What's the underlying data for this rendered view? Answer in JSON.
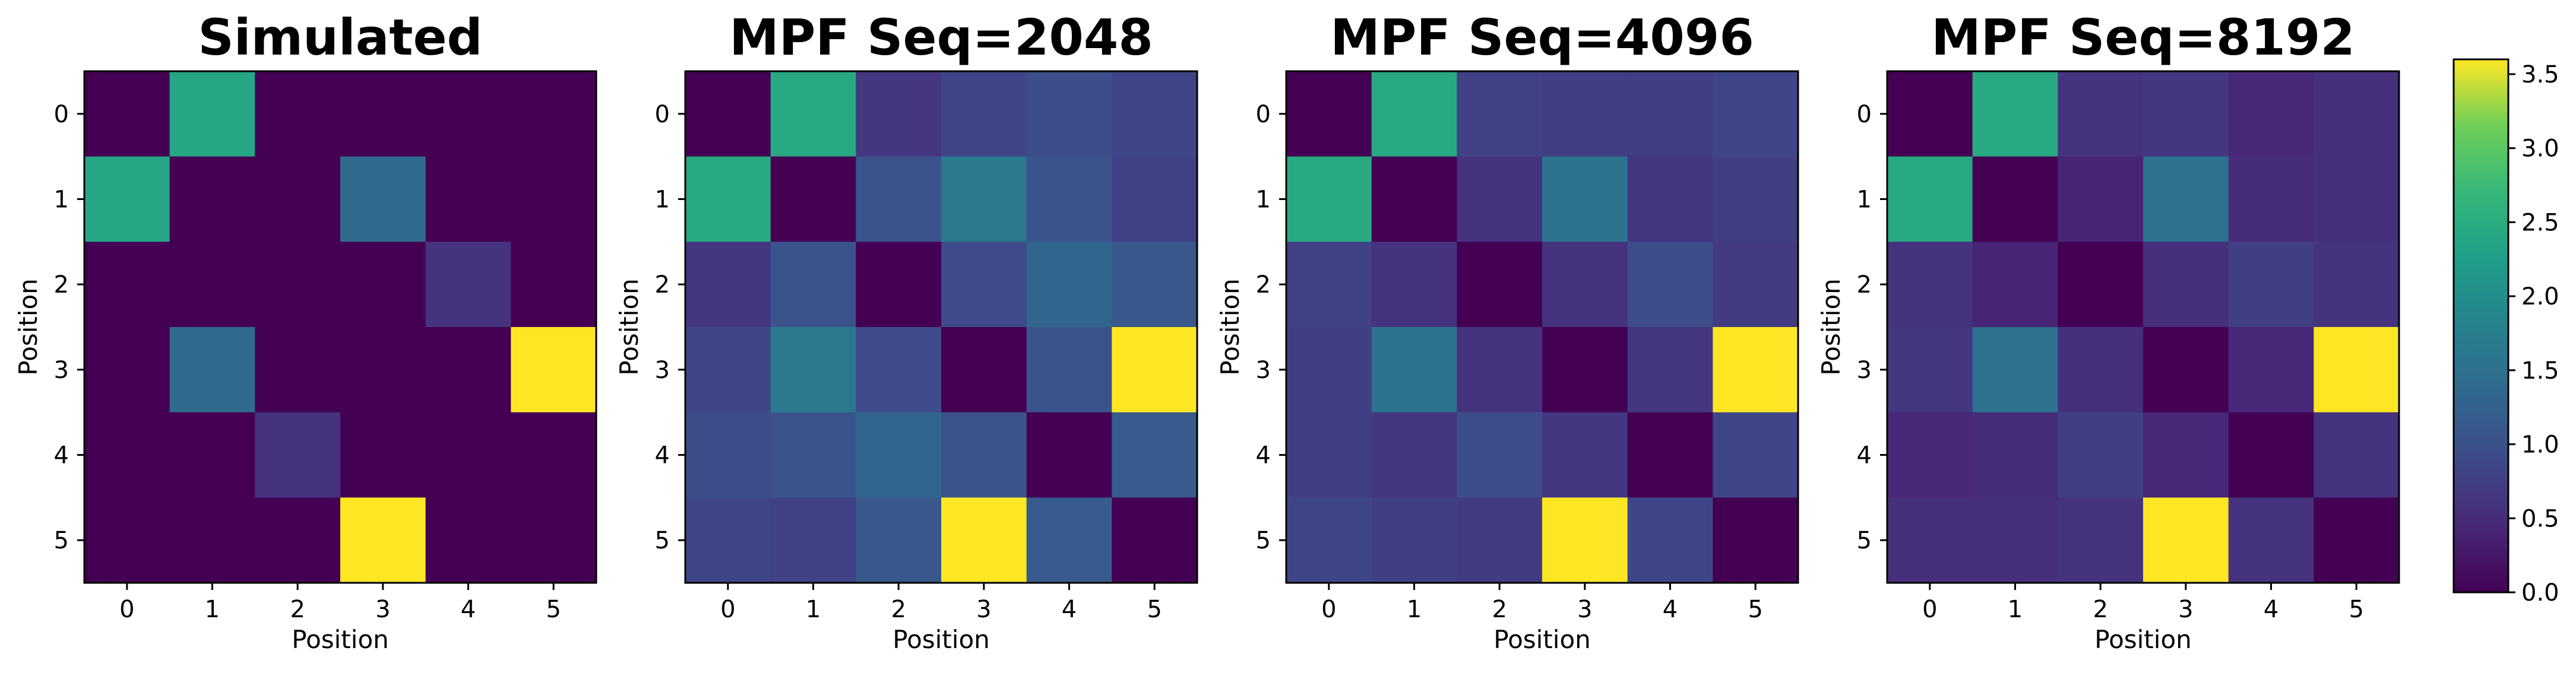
{
  "chart_data": {
    "type": "heatmap",
    "colormap": "viridis",
    "colorbar": {
      "vmin": 0.0,
      "vmax": 3.6,
      "ticks": [
        "0.0",
        "0.5",
        "1.0",
        "1.5",
        "2.0",
        "2.5",
        "3.0",
        "3.5"
      ]
    },
    "panels": [
      {
        "title": "Simulated",
        "xlabel": "Position",
        "ylabel": "Position",
        "xticks": [
          "0",
          "1",
          "2",
          "3",
          "4",
          "5"
        ],
        "yticks": [
          "0",
          "1",
          "2",
          "3",
          "4",
          "5"
        ],
        "matrix": [
          [
            0.0,
            2.4,
            0.0,
            0.0,
            0.0,
            0.0
          ],
          [
            2.4,
            0.0,
            0.0,
            1.4,
            0.0,
            0.0
          ],
          [
            0.0,
            0.0,
            0.0,
            0.0,
            0.6,
            0.0
          ],
          [
            0.0,
            1.4,
            0.0,
            0.0,
            0.0,
            3.6
          ],
          [
            0.0,
            0.0,
            0.6,
            0.0,
            0.0,
            0.0
          ],
          [
            0.0,
            0.0,
            0.0,
            3.6,
            0.0,
            0.0
          ]
        ]
      },
      {
        "title": "MPF Seq=2048",
        "xlabel": "Position",
        "ylabel": "Position",
        "xticks": [
          "0",
          "1",
          "2",
          "3",
          "4",
          "5"
        ],
        "yticks": [
          "0",
          "1",
          "2",
          "3",
          "4",
          "5"
        ],
        "matrix": [
          [
            0.0,
            2.45,
            0.65,
            0.85,
            0.95,
            0.85
          ],
          [
            2.45,
            0.0,
            1.05,
            1.65,
            1.05,
            0.8
          ],
          [
            0.65,
            1.05,
            0.0,
            0.9,
            1.3,
            1.1
          ],
          [
            0.85,
            1.65,
            0.9,
            0.0,
            1.05,
            3.6
          ],
          [
            0.95,
            1.05,
            1.3,
            1.05,
            0.0,
            1.15
          ],
          [
            0.85,
            0.8,
            1.1,
            3.6,
            1.15,
            0.0
          ]
        ]
      },
      {
        "title": "MPF Seq=4096",
        "xlabel": "Position",
        "ylabel": "Position",
        "xticks": [
          "0",
          "1",
          "2",
          "3",
          "4",
          "5"
        ],
        "yticks": [
          "0",
          "1",
          "2",
          "3",
          "4",
          "5"
        ],
        "matrix": [
          [
            0.0,
            2.45,
            0.8,
            0.75,
            0.75,
            0.85
          ],
          [
            2.45,
            0.0,
            0.6,
            1.55,
            0.65,
            0.75
          ],
          [
            0.8,
            0.6,
            0.0,
            0.6,
            0.95,
            0.7
          ],
          [
            0.75,
            1.55,
            0.6,
            0.0,
            0.65,
            3.6
          ],
          [
            0.75,
            0.65,
            0.95,
            0.65,
            0.0,
            0.85
          ],
          [
            0.85,
            0.75,
            0.7,
            3.6,
            0.85,
            0.0
          ]
        ]
      },
      {
        "title": "MPF Seq=8192",
        "xlabel": "Position",
        "ylabel": "Position",
        "xticks": [
          "0",
          "1",
          "2",
          "3",
          "4",
          "5"
        ],
        "yticks": [
          "0",
          "1",
          "2",
          "3",
          "4",
          "5"
        ],
        "matrix": [
          [
            0.0,
            2.45,
            0.6,
            0.65,
            0.45,
            0.55
          ],
          [
            2.45,
            0.0,
            0.4,
            1.5,
            0.5,
            0.55
          ],
          [
            0.6,
            0.4,
            0.0,
            0.55,
            0.75,
            0.6
          ],
          [
            0.65,
            1.5,
            0.55,
            0.0,
            0.45,
            3.6
          ],
          [
            0.45,
            0.5,
            0.75,
            0.45,
            0.0,
            0.6
          ],
          [
            0.55,
            0.55,
            0.6,
            3.6,
            0.6,
            0.0
          ]
        ]
      }
    ]
  }
}
